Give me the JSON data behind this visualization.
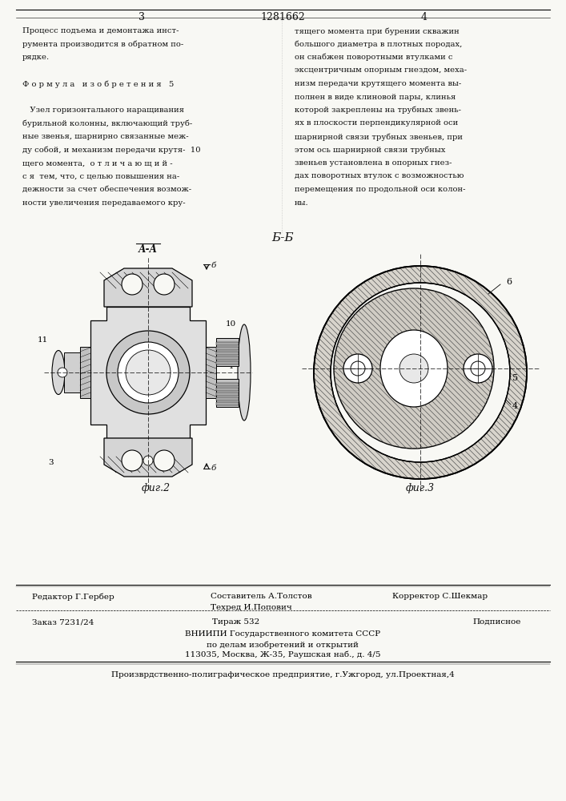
{
  "title": "1281662",
  "page_left": "3",
  "page_right": "4",
  "bg_color": "#f8f8f4",
  "text_color": "#111111",
  "section_label": "Б-Б",
  "fig2_label": "фиг.2",
  "fig3_label": "фиг.3",
  "aa_label": "А-А",
  "left_col_lines": [
    "Процесс подъема и демонтажа инст-",
    "румента производится в обратном по-",
    "рядке.",
    "",
    "Ф о р м у л а   и з о б р е т е н и я   5",
    "",
    "   Узел горизонтального наращивания",
    "бурильной колонны, включающий труб-",
    "ные звенья, шарнирно связанные меж-",
    "ду собой, и механизм передачи крутя-  10",
    "щего момента,  о т л и ч а ю щ и й -",
    "с я  тем, что, с целью повышения на-",
    "дежности за счет обеспечения возмож-",
    "ности увеличения передаваемого кру-"
  ],
  "right_col_lines": [
    "тящего момента при бурении скважин",
    "большого диаметра в плотных породах,",
    "он снабжен поворотными втулками с",
    "эксцентричным опорным гнездом, меха-",
    "низм передачи крутящего момента вы-",
    "полнен в виде клиновой пары, клинья",
    "которой закреплены на трубных звень-",
    "ях в плоскости перпендикулярной оси",
    "шарнирной связи трубных звеньев, при",
    "этом ось шарнирной связи трубных",
    "звеньев установлена в опорных гнез-",
    "дах поворотных втулок с возможностью",
    "перемещения по продольной оси колон-",
    "ны."
  ]
}
